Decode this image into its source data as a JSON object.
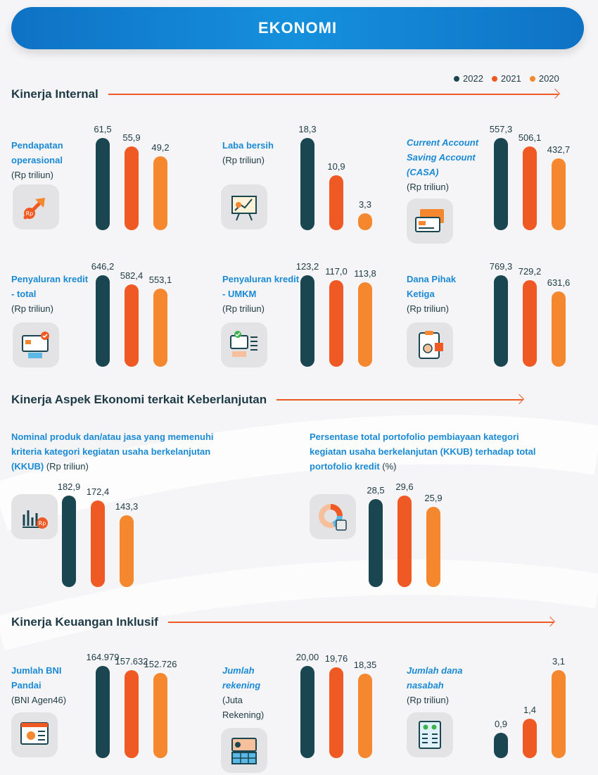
{
  "header": {
    "title": "EKONOMI"
  },
  "legend": [
    {
      "label": "2022",
      "color": "#1a4651"
    },
    {
      "label": "2021",
      "color": "#ef5a24"
    },
    {
      "label": "2020",
      "color": "#f5872e"
    }
  ],
  "sections": {
    "internal": "Kinerja Internal",
    "sustainability": "Kinerja Aspek Ekonomi terkait Keberlanjutan",
    "inclusive": "Kinerja Keuangan Inklusif"
  },
  "chart_data": [
    {
      "type": "bar",
      "title": "Pendapatan operasional",
      "unit": "(Rp triliun)",
      "categories": [
        "2022",
        "2021",
        "2020"
      ],
      "values": [
        61.5,
        55.9,
        49.2
      ],
      "labels": [
        "61,5",
        "55,9",
        "49,2"
      ],
      "icon": "rocket-rp-icon"
    },
    {
      "type": "bar",
      "title": "Laba bersih",
      "unit": "(Rp triliun)",
      "categories": [
        "2022",
        "2021",
        "2020"
      ],
      "values": [
        18.3,
        10.9,
        3.3
      ],
      "labels": [
        "18,3",
        "10,9",
        "3,3"
      ],
      "icon": "chart-board-icon"
    },
    {
      "type": "bar",
      "title": "Current Account Saving Account (CASA)",
      "unit": "(Rp triliun)",
      "categories": [
        "2022",
        "2021",
        "2020"
      ],
      "values": [
        557.3,
        506.1,
        432.7
      ],
      "labels": [
        "557,3",
        "506,1",
        "432,7"
      ],
      "icon": "cards-icon"
    },
    {
      "type": "bar",
      "title": "Penyaluran kredit - total",
      "unit": "(Rp triliun)",
      "categories": [
        "2022",
        "2021",
        "2020"
      ],
      "values": [
        646.2,
        582.4,
        553.1
      ],
      "labels": [
        "646,2",
        "582,4",
        "553,1"
      ],
      "icon": "card-hand-icon"
    },
    {
      "type": "bar",
      "title": "Penyaluran kredit - UMKM",
      "unit": "(Rp triliun)",
      "categories": [
        "2022",
        "2021",
        "2020"
      ],
      "values": [
        123.2,
        117.0,
        113.8
      ],
      "labels": [
        "123,2",
        "117,0",
        "113,8"
      ],
      "icon": "card-list-icon"
    },
    {
      "type": "bar",
      "title": "Dana Pihak Ketiga",
      "unit": "(Rp triliun)",
      "categories": [
        "2022",
        "2021",
        "2020"
      ],
      "values": [
        769.3,
        729.2,
        631.6
      ],
      "labels": [
        "769,3",
        "729,2",
        "631,6"
      ],
      "icon": "clipboard-chart-icon"
    },
    {
      "type": "bar",
      "title": "Nominal produk dan/atau jasa yang memenuhi kriteria kategori kegiatan usaha berkelanjutan (KKUB)",
      "unit": "(Rp triliun)",
      "categories": [
        "2022",
        "2021",
        "2020"
      ],
      "values": [
        182.9,
        172.4,
        143.3
      ],
      "labels": [
        "182,9",
        "172,4",
        "143,3"
      ],
      "icon": "bar-chart-rp-icon"
    },
    {
      "type": "bar",
      "title": "Persentase total portofolio pembiayaan kategori kegiatan usaha berkelanjutan (KKUB) terhadap total portofolio kredit",
      "unit": "(%)",
      "categories": [
        "2022",
        "2021",
        "2020"
      ],
      "values": [
        28.5,
        29.6,
        25.9
      ],
      "labels": [
        "28,5",
        "29,6",
        "25,9"
      ],
      "icon": "donut-calculator-icon"
    },
    {
      "type": "bar",
      "title": "Jumlah BNI Pandai",
      "unit": "(BNI Agen46)",
      "categories": [
        "2022",
        "2021",
        "2020"
      ],
      "values": [
        164979,
        157632,
        152726
      ],
      "labels": [
        "164.979",
        "157.632",
        "152.726"
      ],
      "icon": "agent-screen-icon"
    },
    {
      "type": "bar",
      "title": "Jumlah rekening",
      "unit": "(Juta Rekening)",
      "categories": [
        "2022",
        "2021",
        "2020"
      ],
      "values": [
        20.0,
        19.76,
        18.35
      ],
      "labels": [
        "20,00",
        "19,76",
        "18,35"
      ],
      "icon": "account-card-icon"
    },
    {
      "type": "bar",
      "title": "Jumlah dana nasabah",
      "unit": "(Rp triliun)",
      "categories": [
        "2022",
        "2021",
        "2020"
      ],
      "values": [
        0.9,
        1.4,
        3.1
      ],
      "labels": [
        "0,9",
        "1,4",
        "3,1"
      ],
      "icon": "customers-list-icon"
    }
  ]
}
